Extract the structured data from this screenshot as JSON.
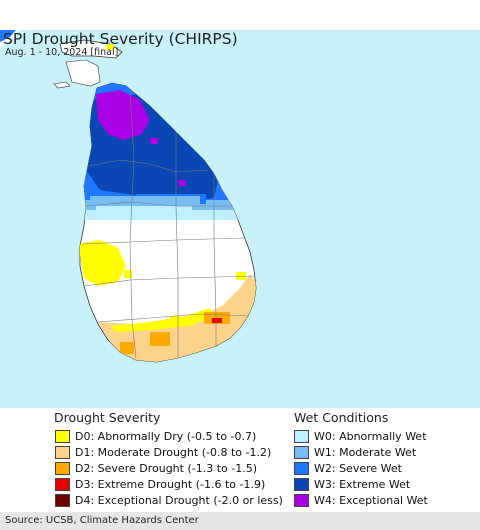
{
  "header": {
    "title": "SPI Drought Severity (CHIRPS)",
    "subtitle": "Aug. 1 - 10, 2024 [final]"
  },
  "colors": {
    "water": "#c8f1f8",
    "land_normal": "#ffffff",
    "D0": "#ffff00",
    "D1": "#fcd38a",
    "D2": "#ffaa00",
    "D3": "#e60000",
    "D4": "#730000",
    "W0": "#bef0ff",
    "W1": "#78bef5",
    "W2": "#1e78ff",
    "W3": "#0a46b4",
    "W4": "#aa00e6"
  },
  "legend": {
    "drought": {
      "heading": "Drought Severity",
      "items": [
        {
          "code": "D0",
          "label": "D0: Abnormally Dry (-0.5 to -0.7)",
          "color": "#ffff00"
        },
        {
          "code": "D1",
          "label": "D1: Moderate Drought (-0.8 to -1.2)",
          "color": "#fcd38a"
        },
        {
          "code": "D2",
          "label": "D2: Severe Drought (-1.3 to -1.5)",
          "color": "#ffaa00"
        },
        {
          "code": "D3",
          "label": "D3: Extreme Drought (-1.6 to -1.9)",
          "color": "#e60000"
        },
        {
          "code": "D4",
          "label": "D4: Exceptional Drought (-2.0 or less)",
          "color": "#730000"
        }
      ]
    },
    "wet": {
      "heading": "Wet Conditions",
      "items": [
        {
          "code": "W0",
          "label": "W0: Abnormally Wet",
          "color": "#bef0ff"
        },
        {
          "code": "W1",
          "label": "W1: Moderate Wet",
          "color": "#78bef5"
        },
        {
          "code": "W2",
          "label": "W2: Severe Wet",
          "color": "#1e78ff"
        },
        {
          "code": "W3",
          "label": "W3: Extreme Wet",
          "color": "#0a46b4"
        },
        {
          "code": "W4",
          "label": "W4: Exceptional Wet",
          "color": "#aa00e6"
        }
      ]
    }
  },
  "footer": {
    "source": "Source: UCSB, Climate Hazards Center"
  }
}
